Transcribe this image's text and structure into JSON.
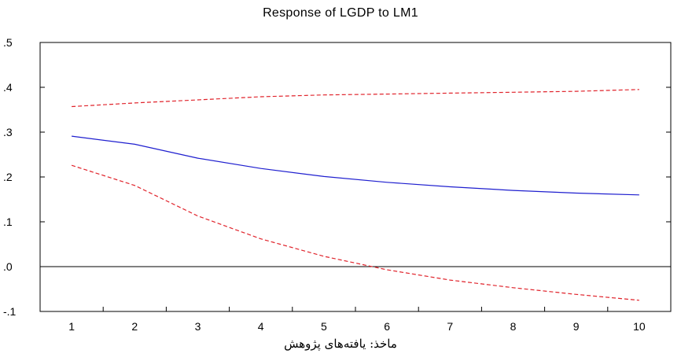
{
  "chart_data": {
    "type": "line",
    "title": "Response of LGDP to LM1",
    "source_note": "ماخذ: یافته‌های پژوهش",
    "x": [
      1,
      2,
      3,
      4,
      5,
      6,
      7,
      8,
      9,
      10
    ],
    "xlim": [
      0.5,
      10.5
    ],
    "ylim": [
      -0.1,
      0.5
    ],
    "yticks": [
      -0.1,
      0.0,
      0.1,
      0.2,
      0.3,
      0.4,
      0.5
    ],
    "ytick_labels": [
      "-.1",
      ".0",
      ".1",
      ".2",
      ".3",
      ".4",
      ".5"
    ],
    "xtick_labels": [
      "1",
      "2",
      "3",
      "4",
      "5",
      "6",
      "7",
      "8",
      "9",
      "10"
    ],
    "grid": false,
    "zero_line": true,
    "series": [
      {
        "style": "solid",
        "color": "#1f1fcf",
        "values": [
          0.291,
          0.273,
          0.242,
          0.219,
          0.201,
          0.188,
          0.178,
          0.17,
          0.164,
          0.16
        ]
      },
      {
        "style": "dashed",
        "color": "#e0232b",
        "values": [
          0.357,
          0.365,
          0.372,
          0.379,
          0.383,
          0.385,
          0.387,
          0.389,
          0.391,
          0.395
        ]
      },
      {
        "style": "dashed",
        "color": "#e0232b",
        "values": [
          0.226,
          0.181,
          0.113,
          0.062,
          0.023,
          -0.007,
          -0.03,
          -0.047,
          -0.062,
          -0.075
        ]
      }
    ]
  }
}
